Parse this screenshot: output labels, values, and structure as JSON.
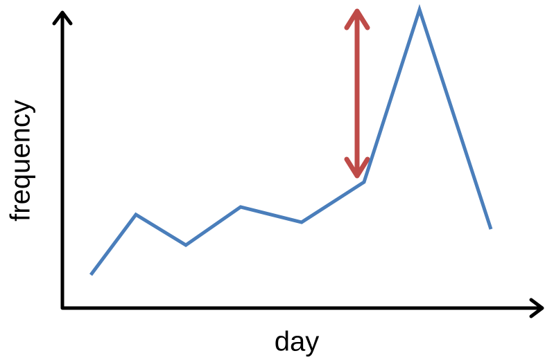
{
  "chart_data": {
    "type": "line",
    "x_label": "day",
    "y_label": "frequency",
    "x": [
      41,
      106,
      178,
      257,
      345,
      435,
      515,
      618
    ],
    "xlim": [
      0,
      692
    ],
    "ylim": [
      0,
      435
    ],
    "series": [
      {
        "color": "#4a7ebb",
        "values": [
          48,
          135,
          91,
          146,
          124,
          182,
          431,
          114
        ]
      }
    ]
  }
}
